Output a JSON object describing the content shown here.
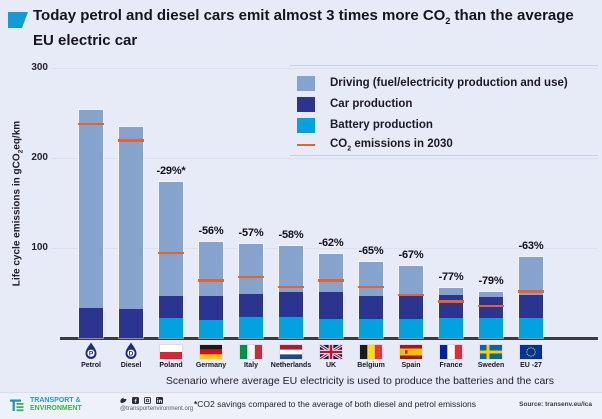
{
  "title": {
    "pre": "Today petrol and diesel cars emit almost 3 times more CO",
    "sub": "2",
    "post": " than the average EU electric car"
  },
  "y_axis": {
    "label_pre": "Life cycle emissions in gCO",
    "label_sub": "2",
    "label_post": "eq/km",
    "ticks": [
      100,
      200,
      300
    ]
  },
  "legend": {
    "items": [
      {
        "key": "driving",
        "label": "Driving (fuel/electricity production and use)",
        "color": "#85a3cd"
      },
      {
        "key": "car",
        "label": "Car production",
        "color": "#2b3590"
      },
      {
        "key": "battery",
        "label": "Battery production",
        "color": "#00a2e0"
      }
    ],
    "line_item": {
      "pre": "CO",
      "sub": "2",
      "post": " emissions in 2030",
      "color": "#e8622b"
    }
  },
  "chart_data": {
    "type": "bar",
    "stacked": true,
    "title": "Today petrol and diesel cars emit almost 3 times more CO2 than the average EU electric car",
    "ylabel": "Life cycle emissions in gCO2eq/km",
    "ylim": [
      0,
      300
    ],
    "grid": true,
    "legend_position": "top-right",
    "categories": [
      "Petrol",
      "Diesel",
      "Poland",
      "Germany",
      "Italy",
      "Netherlands",
      "UK",
      "Belgium",
      "Spain",
      "France",
      "Sweden",
      "EU -27"
    ],
    "flags": [
      "petrol",
      "diesel",
      "pl",
      "de",
      "it",
      "nl",
      "uk",
      "be",
      "es",
      "fr",
      "se",
      "eu"
    ],
    "series": [
      {
        "name": "Battery production",
        "values": [
          0,
          0,
          22,
          20,
          23,
          23,
          21,
          21,
          21,
          22,
          22,
          22
        ]
      },
      {
        "name": "Car production",
        "values": [
          33,
          32,
          25,
          27,
          26,
          28,
          30,
          26,
          26,
          26,
          24,
          26
        ]
      },
      {
        "name": "Driving (fuel/electricity production and use)",
        "values": [
          220,
          202,
          126,
          60,
          56,
          51,
          42,
          38,
          33,
          8,
          5,
          42
        ]
      }
    ],
    "totals": [
      253,
      234,
      173,
      107,
      105,
      102,
      93,
      85,
      80,
      56,
      51,
      90
    ],
    "co2_emissions_2030": [
      238,
      220,
      95,
      64,
      68,
      57,
      64,
      57,
      48,
      41,
      36,
      52
    ],
    "pct_labels": [
      "",
      "",
      "-29%*",
      "-56%",
      "-57%",
      "-58%",
      "-62%",
      "-65%",
      "-67%",
      "-77%",
      "-79%",
      "-63%"
    ]
  },
  "notes": {
    "scenario": "Scenario where  average EU electricity is used to produce the batteries and the cars",
    "footnote_star": "*",
    "footnote": "CO2 savings compared to the average of both diesel and petrol emissions",
    "source": "Source: transenv.eu/lca"
  },
  "footer": {
    "logo_line1": "TRANSPORT &",
    "logo_line2": "ENVIRONMENT",
    "handle": "@transportenvironment.org",
    "social_icons": [
      "twitter",
      "facebook",
      "instagram",
      "linkedin"
    ]
  },
  "colors": {
    "background": "#e7eaf7",
    "driving": "#85a3cd",
    "car_production": "#2b3590",
    "battery_production": "#00a2e0",
    "co2_2030_line": "#e8622b",
    "axis": "#393941",
    "title_accent": "#119bd7",
    "logo_blue": "#189cd8",
    "logo_green": "#45b049"
  }
}
